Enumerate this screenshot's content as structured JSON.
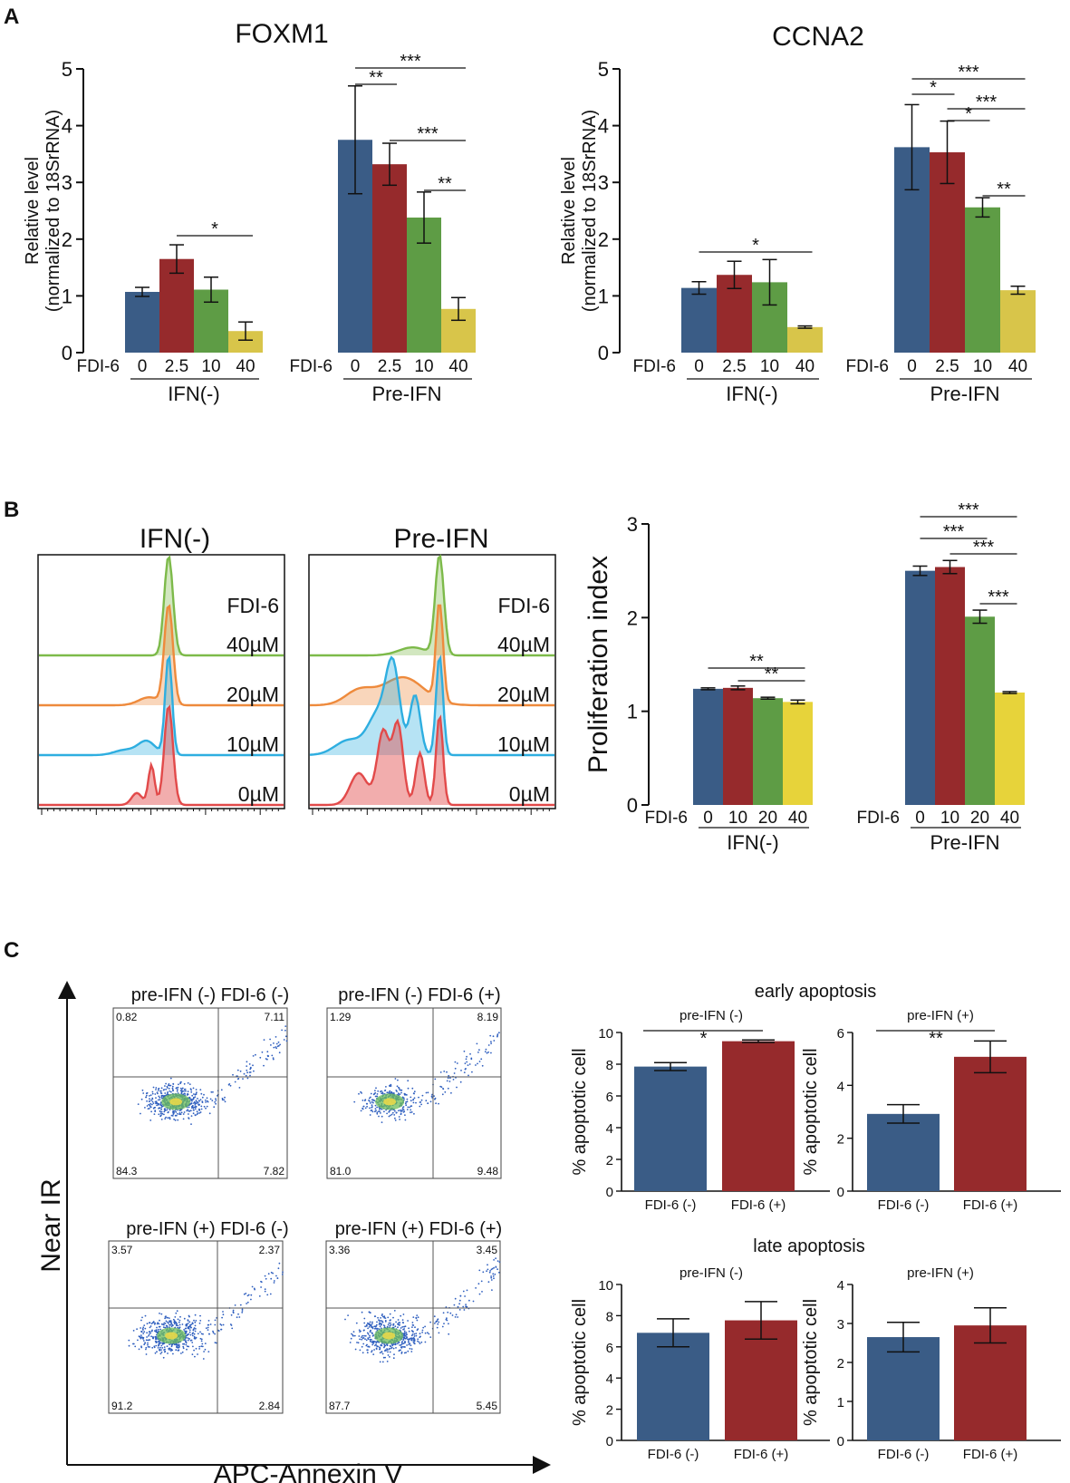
{
  "figure": {
    "panel_letters": [
      "A",
      "B",
      "C"
    ],
    "B_flow_titles": [
      "IFN(-)",
      "Pre-IFN"
    ],
    "B_flow_conc_header": "FDI-6",
    "B_flow_concs": [
      "40µM",
      "20µM",
      "10µM",
      "0µM"
    ],
    "C_axis_y": "Near IR",
    "C_axis_x": "APC-Annexin V",
    "C_early_heading": "early apoptosis",
    "C_late_heading": "late apoptosis",
    "C_scatter_plots": [
      {
        "title": "pre-IFN (-) FDI-6 (-)",
        "q": [
          "0.82",
          "7.11",
          "84.3",
          "7.82"
        ]
      },
      {
        "title": "pre-IFN (-) FDI-6 (+)",
        "q": [
          "1.29",
          "8.19",
          "81.0",
          "9.48"
        ]
      },
      {
        "title": "pre-IFN (+) FDI-6 (-)",
        "q": [
          "3.57",
          "2.37",
          "91.2",
          "2.84"
        ]
      },
      {
        "title": "pre-IFN (+) FDI-6 (+)",
        "q": [
          "3.36",
          "3.45",
          "87.7",
          "5.45"
        ]
      }
    ]
  },
  "colors": {
    "blue": "#3A5C86",
    "red": "#962A2C",
    "green": "#5E9C45",
    "yellow": "#D8C54A",
    "yellowB": "#E7D33A"
  },
  "chart_data": [
    {
      "id": "A1",
      "type": "bar",
      "title": "FOXM1",
      "ylabel": "Relative level",
      "ylabel2": "(normalized to 18SrRNA)",
      "ylim": [
        0,
        5
      ],
      "yticks": [
        0,
        1,
        2,
        3,
        4,
        5
      ],
      "cat_prefix": "FDI-6",
      "groups": [
        {
          "name": "IFN(-)",
          "categories": [
            "0",
            "2.5",
            "10",
            "40"
          ],
          "values": [
            1.07,
            1.65,
            1.11,
            0.38
          ],
          "errors": [
            0.08,
            0.25,
            0.22,
            0.16
          ]
        },
        {
          "name": "Pre-IFN",
          "categories": [
            "0",
            "2.5",
            "10",
            "40"
          ],
          "values": [
            3.75,
            3.32,
            2.38,
            0.77
          ],
          "errors": [
            0.95,
            0.37,
            0.45,
            0.2
          ]
        }
      ],
      "significance": [
        {
          "group": 0,
          "from": 1,
          "to": 3,
          "label": "*"
        },
        {
          "group": 1,
          "from": 0,
          "to": 3,
          "label": "***"
        },
        {
          "group": 1,
          "from": 0,
          "to": 1,
          "label": "**"
        },
        {
          "group": 1,
          "from": 1,
          "to": 3,
          "label": "***"
        },
        {
          "group": 1,
          "from": 2,
          "to": 3,
          "label": "**"
        }
      ]
    },
    {
      "id": "A2",
      "type": "bar",
      "title": "CCNA2",
      "ylabel": "Relative level",
      "ylabel2": "(normalized to 18SrRNA)",
      "ylim": [
        0,
        5
      ],
      "yticks": [
        0,
        1,
        2,
        3,
        4,
        5
      ],
      "cat_prefix": "FDI-6",
      "groups": [
        {
          "name": "IFN(-)",
          "categories": [
            "0",
            "2.5",
            "10",
            "40"
          ],
          "values": [
            1.14,
            1.37,
            1.24,
            0.45
          ],
          "errors": [
            0.11,
            0.24,
            0.4,
            0.02
          ]
        },
        {
          "name": "Pre-IFN",
          "categories": [
            "0",
            "2.5",
            "10",
            "40"
          ],
          "values": [
            3.62,
            3.53,
            2.56,
            1.1
          ],
          "errors": [
            0.75,
            0.55,
            0.17,
            0.07
          ]
        }
      ],
      "significance": [
        {
          "group": 0,
          "from": 0,
          "to": 3,
          "label": "*"
        },
        {
          "group": 1,
          "from": 0,
          "to": 3,
          "label": "***"
        },
        {
          "group": 1,
          "from": 0,
          "to": 1,
          "label": "*"
        },
        {
          "group": 1,
          "from": 1,
          "to": 3,
          "label": "***"
        },
        {
          "group": 1,
          "from": 1,
          "to": 2,
          "label": "*"
        },
        {
          "group": 1,
          "from": 2,
          "to": 3,
          "label": "**"
        }
      ]
    },
    {
      "id": "B1",
      "type": "bar",
      "title": "",
      "ylabel": "Proliferation index",
      "ylabel2": "",
      "ylim": [
        0,
        3
      ],
      "yticks": [
        0,
        1,
        2,
        3
      ],
      "cat_prefix": "FDI-6",
      "groups": [
        {
          "name": "IFN(-)",
          "categories": [
            "0",
            "10",
            "20",
            "40"
          ],
          "values": [
            1.24,
            1.25,
            1.14,
            1.1
          ],
          "errors": [
            0.01,
            0.02,
            0.01,
            0.02
          ]
        },
        {
          "name": "Pre-IFN",
          "categories": [
            "0",
            "10",
            "20",
            "40"
          ],
          "values": [
            2.5,
            2.54,
            2.01,
            1.2
          ],
          "errors": [
            0.05,
            0.07,
            0.07,
            0.01
          ]
        }
      ],
      "significance": [
        {
          "group": 0,
          "from": 0,
          "to": 3,
          "label": "**"
        },
        {
          "group": 0,
          "from": 1,
          "to": 3,
          "label": "**"
        },
        {
          "group": 1,
          "from": 0,
          "to": 3,
          "label": "***"
        },
        {
          "group": 1,
          "from": 0,
          "to": 2,
          "label": "***"
        },
        {
          "group": 1,
          "from": 1,
          "to": 3,
          "label": "***"
        },
        {
          "group": 1,
          "from": 2,
          "to": 3,
          "label": "***"
        }
      ]
    },
    {
      "id": "C1",
      "type": "bar",
      "subtitle": "pre-IFN (-)",
      "ylabel": "% apoptotic cell",
      "ylim": [
        0,
        10
      ],
      "yticks": [
        0,
        2,
        4,
        6,
        8,
        10
      ],
      "categories": [
        "FDI-6 (-)",
        "FDI-6 (+)"
      ],
      "values": [
        7.85,
        9.45
      ],
      "errors": [
        0.25,
        0.08
      ],
      "significance": [
        {
          "from": 0,
          "to": 1,
          "label": "*"
        }
      ]
    },
    {
      "id": "C2",
      "type": "bar",
      "subtitle": "pre-IFN (+)",
      "ylabel": "% apoptotic cell",
      "ylim": [
        0,
        6
      ],
      "yticks": [
        0,
        2,
        4,
        6
      ],
      "categories": [
        "FDI-6 (-)",
        "FDI-6 (+)"
      ],
      "values": [
        2.92,
        5.08
      ],
      "errors": [
        0.35,
        0.6
      ],
      "significance": [
        {
          "from": 0,
          "to": 1,
          "label": "**"
        }
      ]
    },
    {
      "id": "C3",
      "type": "bar",
      "subtitle": "pre-IFN (-)",
      "ylabel": "% apoptotic cell",
      "ylim": [
        0,
        10
      ],
      "yticks": [
        0,
        2,
        4,
        6,
        8,
        10
      ],
      "categories": [
        "FDI-6 (-)",
        "FDI-6 (+)"
      ],
      "values": [
        6.9,
        7.7
      ],
      "errors": [
        0.9,
        1.2
      ],
      "significance": []
    },
    {
      "id": "C4",
      "type": "bar",
      "subtitle": "pre-IFN (+)",
      "ylabel": "% apoptotic cell",
      "ylim": [
        0,
        4
      ],
      "yticks": [
        0,
        1,
        2,
        3,
        4
      ],
      "categories": [
        "FDI-6 (-)",
        "FDI-6 (+)"
      ],
      "values": [
        2.65,
        2.95
      ],
      "errors": [
        0.38,
        0.45
      ],
      "significance": []
    }
  ]
}
